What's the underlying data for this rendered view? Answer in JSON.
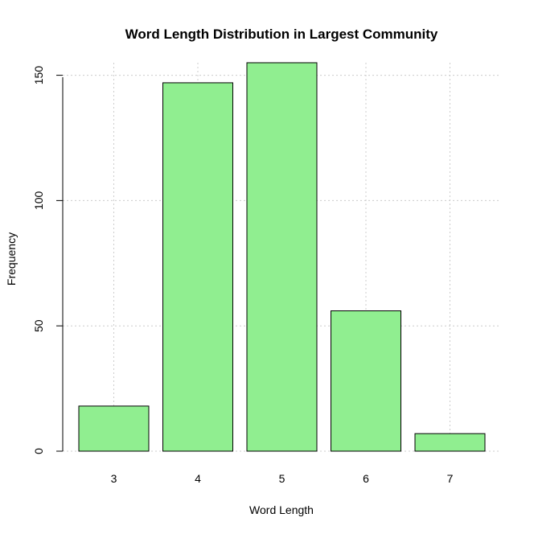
{
  "chart_data": {
    "type": "bar",
    "title": "Word Length Distribution in Largest Community",
    "xlabel": "Word Length",
    "ylabel": "Frequency",
    "categories": [
      "3",
      "4",
      "5",
      "6",
      "7"
    ],
    "values": [
      18,
      147,
      155,
      56,
      7
    ],
    "ylim": [
      0,
      155
    ],
    "yticks": [
      0,
      50,
      100,
      150
    ],
    "bar_color": "#90EE90",
    "grid": true
  }
}
